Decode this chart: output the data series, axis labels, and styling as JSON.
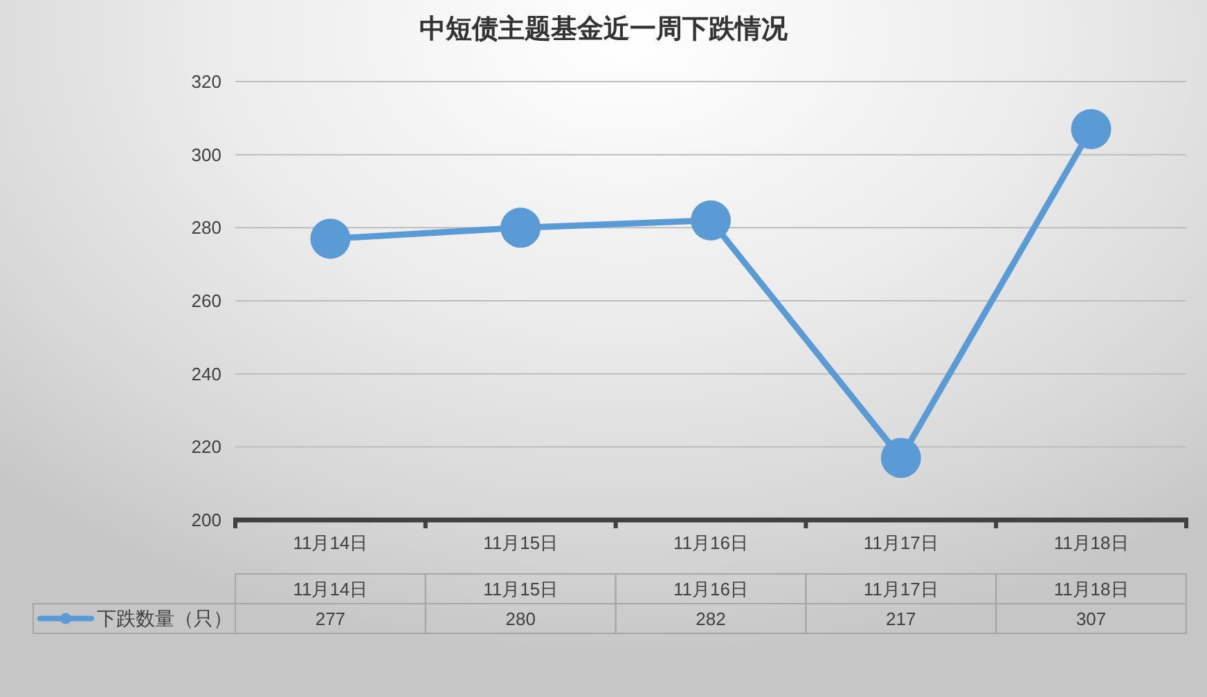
{
  "chart_data": {
    "type": "line",
    "title": "中短债主题基金近一周下跌情况",
    "categories": [
      "11月14日",
      "11月15日",
      "11月16日",
      "11月17日",
      "11月18日"
    ],
    "series": [
      {
        "name": "下跌数量（只）",
        "color": "#5b9bd5",
        "values": [
          277,
          280,
          282,
          217,
          307
        ]
      }
    ],
    "ylim": [
      200,
      320
    ],
    "yticks": [
      200,
      220,
      240,
      260,
      280,
      300,
      320
    ],
    "grid": "y",
    "legend": "bottom left",
    "marker": "circle",
    "line_style": "solid",
    "data_labels": true
  }
}
